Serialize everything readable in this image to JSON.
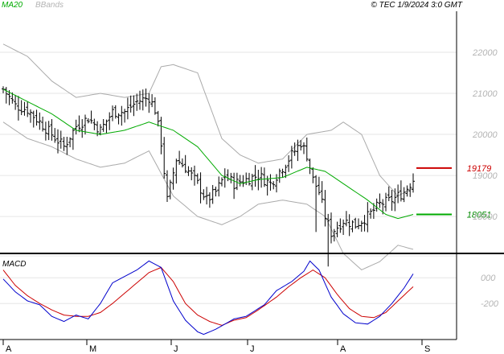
{
  "header": {
    "timestamp": "© TEC 1/9/2024 3:0 GMT",
    "legend_ma": "MA20",
    "legend_bb": "BBands",
    "macd_label": "MACD"
  },
  "colors": {
    "price": "#000000",
    "ma": "#00aa00",
    "bbands": "#aaaaaa",
    "macd": "#0000cc",
    "signal": "#cc0000",
    "resistance": "#cc0000",
    "support": "#00aa00",
    "grid": "#e6e6e6"
  },
  "chart_data": [
    {
      "type": "ohlc",
      "title": "",
      "xlabel": "",
      "ylabel": "",
      "x_ticks": [
        "A",
        "M",
        "J",
        "J",
        "A",
        "S"
      ],
      "y_ticks": [
        "22000",
        "21000",
        "20000",
        "19000",
        "18000"
      ],
      "y_tick_values": [
        22000,
        21000,
        20000,
        19000,
        18000
      ],
      "ylim": [
        17100,
        23000
      ],
      "annotations": [
        {
          "label": "19179",
          "value": 19179,
          "color": "#cc0000"
        },
        {
          "label": "18051",
          "value": 18051,
          "color": "#00aa00"
        }
      ],
      "close_anchors": [
        {
          "bar": 0,
          "close": 21100
        },
        {
          "bar": 4,
          "close": 20700
        },
        {
          "bar": 8,
          "close": 20600
        },
        {
          "bar": 12,
          "close": 20300
        },
        {
          "bar": 16,
          "close": 20000
        },
        {
          "bar": 20,
          "close": 19700
        },
        {
          "bar": 24,
          "close": 20200
        },
        {
          "bar": 28,
          "close": 20400
        },
        {
          "bar": 32,
          "close": 20100
        },
        {
          "bar": 36,
          "close": 20550
        },
        {
          "bar": 40,
          "close": 20550
        },
        {
          "bar": 44,
          "close": 20800
        },
        {
          "bar": 48,
          "close": 20900
        },
        {
          "bar": 50,
          "close": 20600
        },
        {
          "bar": 52,
          "close": 19800
        },
        {
          "bar": 54,
          "close": 18400
        },
        {
          "bar": 57,
          "close": 19400
        },
        {
          "bar": 60,
          "close": 19200
        },
        {
          "bar": 64,
          "close": 18800
        },
        {
          "bar": 67,
          "close": 18400
        },
        {
          "bar": 70,
          "close": 18600
        },
        {
          "bar": 73,
          "close": 19000
        },
        {
          "bar": 76,
          "close": 18800
        },
        {
          "bar": 80,
          "close": 18900
        },
        {
          "bar": 84,
          "close": 19000
        },
        {
          "bar": 88,
          "close": 18800
        },
        {
          "bar": 92,
          "close": 19200
        },
        {
          "bar": 95,
          "close": 19500
        },
        {
          "bar": 98,
          "close": 19800
        },
        {
          "bar": 100,
          "close": 19500
        },
        {
          "bar": 102,
          "close": 18900
        },
        {
          "bar": 104,
          "close": 18600
        },
        {
          "bar": 106,
          "close": 18000
        },
        {
          "bar": 108,
          "close": 17600
        },
        {
          "bar": 112,
          "close": 17900
        },
        {
          "bar": 116,
          "close": 17800
        },
        {
          "bar": 120,
          "close": 18000
        },
        {
          "bar": 124,
          "close": 18300
        },
        {
          "bar": 128,
          "close": 18400
        },
        {
          "bar": 132,
          "close": 18600
        },
        {
          "bar": 135,
          "close": 18900
        }
      ],
      "series": [
        {
          "name": "MA20",
          "values": [
            {
              "bar": 0,
              "value": 21100
            },
            {
              "bar": 8,
              "value": 20800
            },
            {
              "bar": 16,
              "value": 20500
            },
            {
              "bar": 24,
              "value": 20100
            },
            {
              "bar": 32,
              "value": 20000
            },
            {
              "bar": 40,
              "value": 20100
            },
            {
              "bar": 48,
              "value": 20300
            },
            {
              "bar": 56,
              "value": 20100
            },
            {
              "bar": 64,
              "value": 19700
            },
            {
              "bar": 72,
              "value": 19000
            },
            {
              "bar": 78,
              "value": 18800
            },
            {
              "bar": 84,
              "value": 18900
            },
            {
              "bar": 92,
              "value": 18950
            },
            {
              "bar": 100,
              "value": 19200
            },
            {
              "bar": 106,
              "value": 19100
            },
            {
              "bar": 112,
              "value": 18800
            },
            {
              "bar": 120,
              "value": 18400
            },
            {
              "bar": 126,
              "value": 18050
            },
            {
              "bar": 130,
              "value": 17950
            },
            {
              "bar": 135,
              "value": 18050
            }
          ]
        },
        {
          "name": "BBands",
          "values": [
            {
              "bar": 0,
              "value": 22200
            },
            {
              "bar": 8,
              "value": 21900
            },
            {
              "bar": 16,
              "value": 21300
            },
            {
              "bar": 24,
              "value": 20900
            },
            {
              "bar": 32,
              "value": 21000
            },
            {
              "bar": 40,
              "value": 20900
            },
            {
              "bar": 48,
              "value": 21000
            },
            {
              "bar": 52,
              "value": 21650
            },
            {
              "bar": 56,
              "value": 21700
            },
            {
              "bar": 64,
              "value": 21500
            },
            {
              "bar": 72,
              "value": 19900
            },
            {
              "bar": 78,
              "value": 19500
            },
            {
              "bar": 84,
              "value": 19300
            },
            {
              "bar": 92,
              "value": 19400
            },
            {
              "bar": 100,
              "value": 20000
            },
            {
              "bar": 108,
              "value": 20100
            },
            {
              "bar": 112,
              "value": 20300
            },
            {
              "bar": 118,
              "value": 20000
            },
            {
              "bar": 124,
              "value": 19000
            },
            {
              "bar": 130,
              "value": 18500
            },
            {
              "bar": 135,
              "value": 18700
            }
          ]
        },
        {
          "name": "BBands-lower",
          "values": [
            {
              "bar": 0,
              "value": 20300
            },
            {
              "bar": 8,
              "value": 19900
            },
            {
              "bar": 16,
              "value": 19700
            },
            {
              "bar": 24,
              "value": 19400
            },
            {
              "bar": 32,
              "value": 19200
            },
            {
              "bar": 40,
              "value": 19300
            },
            {
              "bar": 48,
              "value": 19600
            },
            {
              "bar": 56,
              "value": 18500
            },
            {
              "bar": 64,
              "value": 18000
            },
            {
              "bar": 72,
              "value": 17800
            },
            {
              "bar": 78,
              "value": 18000
            },
            {
              "bar": 84,
              "value": 18300
            },
            {
              "bar": 92,
              "value": 18400
            },
            {
              "bar": 100,
              "value": 18300
            },
            {
              "bar": 106,
              "value": 18000
            },
            {
              "bar": 112,
              "value": 17100
            },
            {
              "bar": 118,
              "value": 16700
            },
            {
              "bar": 124,
              "value": 16900
            },
            {
              "bar": 130,
              "value": 17300
            },
            {
              "bar": 135,
              "value": 17200
            }
          ]
        }
      ]
    },
    {
      "type": "line",
      "title": "",
      "xlabel": "",
      "ylabel": "",
      "y_ticks": [
        "000",
        "-200"
      ],
      "y_tick_values": [
        0,
        -200
      ],
      "ylim": [
        -480,
        170
      ],
      "series": [
        {
          "name": "MACD",
          "values": [
            {
              "bar": 0,
              "value": -10
            },
            {
              "bar": 4,
              "value": -110
            },
            {
              "bar": 8,
              "value": -180
            },
            {
              "bar": 12,
              "value": -210
            },
            {
              "bar": 16,
              "value": -300
            },
            {
              "bar": 20,
              "value": -340
            },
            {
              "bar": 24,
              "value": -290
            },
            {
              "bar": 28,
              "value": -320
            },
            {
              "bar": 32,
              "value": -200
            },
            {
              "bar": 36,
              "value": -40
            },
            {
              "bar": 40,
              "value": 10
            },
            {
              "bar": 44,
              "value": 60
            },
            {
              "bar": 48,
              "value": 130
            },
            {
              "bar": 52,
              "value": 80
            },
            {
              "bar": 56,
              "value": -180
            },
            {
              "bar": 60,
              "value": -330
            },
            {
              "bar": 64,
              "value": -420
            },
            {
              "bar": 66,
              "value": -440
            },
            {
              "bar": 70,
              "value": -400
            },
            {
              "bar": 76,
              "value": -320
            },
            {
              "bar": 80,
              "value": -300
            },
            {
              "bar": 86,
              "value": -210
            },
            {
              "bar": 90,
              "value": -100
            },
            {
              "bar": 95,
              "value": -30
            },
            {
              "bar": 99,
              "value": 50
            },
            {
              "bar": 101,
              "value": 130
            },
            {
              "bar": 104,
              "value": 60
            },
            {
              "bar": 108,
              "value": -150
            },
            {
              "bar": 112,
              "value": -280
            },
            {
              "bar": 116,
              "value": -350
            },
            {
              "bar": 120,
              "value": -360
            },
            {
              "bar": 124,
              "value": -300
            },
            {
              "bar": 128,
              "value": -200
            },
            {
              "bar": 132,
              "value": -80
            },
            {
              "bar": 135,
              "value": 30
            }
          ]
        },
        {
          "name": "Signal",
          "values": [
            {
              "bar": 0,
              "value": 60
            },
            {
              "bar": 4,
              "value": -60
            },
            {
              "bar": 8,
              "value": -140
            },
            {
              "bar": 12,
              "value": -200
            },
            {
              "bar": 16,
              "value": -250
            },
            {
              "bar": 20,
              "value": -290
            },
            {
              "bar": 24,
              "value": -300
            },
            {
              "bar": 28,
              "value": -300
            },
            {
              "bar": 32,
              "value": -270
            },
            {
              "bar": 36,
              "value": -200
            },
            {
              "bar": 40,
              "value": -120
            },
            {
              "bar": 44,
              "value": -40
            },
            {
              "bar": 48,
              "value": 40
            },
            {
              "bar": 52,
              "value": 80
            },
            {
              "bar": 56,
              "value": -30
            },
            {
              "bar": 60,
              "value": -200
            },
            {
              "bar": 64,
              "value": -290
            },
            {
              "bar": 68,
              "value": -340
            },
            {
              "bar": 72,
              "value": -370
            },
            {
              "bar": 76,
              "value": -330
            },
            {
              "bar": 80,
              "value": -310
            },
            {
              "bar": 84,
              "value": -250
            },
            {
              "bar": 90,
              "value": -150
            },
            {
              "bar": 94,
              "value": -70
            },
            {
              "bar": 98,
              "value": 0
            },
            {
              "bar": 102,
              "value": 60
            },
            {
              "bar": 106,
              "value": 0
            },
            {
              "bar": 110,
              "value": -130
            },
            {
              "bar": 114,
              "value": -240
            },
            {
              "bar": 118,
              "value": -300
            },
            {
              "bar": 122,
              "value": -310
            },
            {
              "bar": 126,
              "value": -270
            },
            {
              "bar": 130,
              "value": -180
            },
            {
              "bar": 135,
              "value": -70
            }
          ]
        }
      ]
    }
  ]
}
